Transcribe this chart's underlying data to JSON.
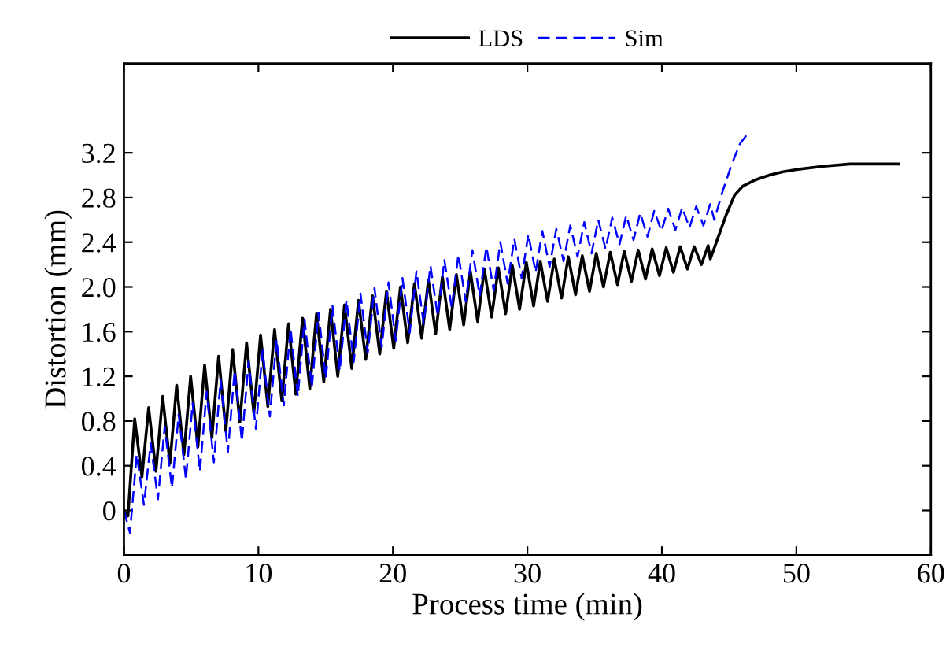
{
  "chart_data": {
    "type": "line",
    "xlabel": "Process time (min)",
    "ylabel": "Distortion (mm)",
    "xlim": [
      0,
      60
    ],
    "xticks": [
      0,
      10,
      20,
      30,
      40,
      50,
      60
    ],
    "ylim": [
      -0.4,
      4.0
    ],
    "yticks": [
      0,
      0.4,
      0.8,
      1.2,
      1.6,
      {
        "value": 2.0,
        "label": "2.0"
      },
      2.4,
      2.8,
      3.2
    ],
    "legend": "top",
    "grid": false,
    "series": [
      {
        "name": "LDS",
        "color": "#000000",
        "line_style": "solid",
        "x": [
          0,
          0.3,
          0.8,
          1.34,
          1.84,
          2.38,
          2.88,
          3.42,
          3.92,
          4.46,
          4.96,
          5.5,
          6.0,
          6.54,
          7.04,
          7.58,
          8.08,
          8.62,
          9.12,
          9.66,
          10.16,
          10.7,
          11.2,
          11.74,
          12.24,
          12.78,
          13.28,
          13.82,
          14.32,
          14.86,
          15.36,
          15.9,
          16.4,
          16.94,
          17.44,
          17.98,
          18.48,
          19.02,
          19.52,
          20.06,
          20.56,
          21.1,
          21.6,
          22.14,
          22.64,
          23.18,
          23.68,
          24.22,
          24.72,
          25.26,
          25.76,
          26.3,
          26.8,
          27.34,
          27.84,
          28.38,
          28.88,
          29.42,
          29.92,
          30.46,
          30.96,
          31.5,
          32.0,
          32.54,
          33.04,
          33.58,
          34.08,
          34.62,
          35.12,
          35.66,
          36.16,
          36.7,
          37.2,
          37.74,
          38.24,
          38.78,
          39.28,
          39.82,
          40.32,
          40.86,
          41.36,
          41.9,
          42.4,
          42.94,
          43.44,
          43.6,
          44.2,
          44.8,
          45.4,
          46,
          47,
          48,
          49,
          50,
          52,
          54,
          56,
          57.6
        ],
        "values": [
          0,
          -0.05,
          0.82,
          0.3,
          0.92,
          0.35,
          1.02,
          0.42,
          1.12,
          0.5,
          1.2,
          0.57,
          1.3,
          0.65,
          1.38,
          0.71,
          1.44,
          0.79,
          1.5,
          0.87,
          1.57,
          0.93,
          1.62,
          0.98,
          1.67,
          1.04,
          1.72,
          1.09,
          1.76,
          1.15,
          1.8,
          1.2,
          1.84,
          1.27,
          1.88,
          1.35,
          1.92,
          1.4,
          1.96,
          1.45,
          2.0,
          1.5,
          2.03,
          1.54,
          2.06,
          1.58,
          2.09,
          1.62,
          2.11,
          1.66,
          2.14,
          1.69,
          2.16,
          1.73,
          2.17,
          1.76,
          2.19,
          1.8,
          2.22,
          1.83,
          2.23,
          1.87,
          2.25,
          1.9,
          2.27,
          1.93,
          2.28,
          1.96,
          2.3,
          2.0,
          2.31,
          2.02,
          2.32,
          2.05,
          2.33,
          2.07,
          2.34,
          2.1,
          2.35,
          2.13,
          2.36,
          2.16,
          2.36,
          2.2,
          2.37,
          2.25,
          2.45,
          2.65,
          2.82,
          2.9,
          2.96,
          3.0,
          3.03,
          3.05,
          3.08,
          3.1,
          3.1,
          3.1
        ]
      },
      {
        "name": "Sim",
        "color": "#0000ff",
        "line_style": "dashed",
        "x": [
          0,
          0.45,
          0.95,
          1.49,
          1.99,
          2.53,
          3.03,
          3.57,
          4.07,
          4.61,
          5.11,
          5.65,
          6.15,
          6.69,
          7.19,
          7.73,
          8.23,
          8.77,
          9.27,
          9.81,
          10.31,
          10.85,
          11.35,
          11.89,
          12.39,
          12.93,
          13.43,
          13.97,
          14.47,
          15.01,
          15.51,
          16.05,
          16.55,
          17.09,
          17.59,
          18.13,
          18.63,
          19.17,
          19.67,
          20.21,
          20.71,
          21.25,
          21.75,
          22.29,
          22.79,
          23.33,
          23.83,
          24.37,
          24.87,
          25.41,
          25.91,
          26.45,
          26.95,
          27.49,
          27.99,
          28.53,
          29.03,
          29.57,
          30.07,
          30.61,
          31.11,
          31.65,
          32.15,
          32.69,
          33.19,
          33.73,
          34.23,
          34.77,
          35.27,
          35.81,
          36.31,
          36.85,
          37.35,
          37.89,
          38.39,
          38.93,
          39.43,
          39.97,
          40.47,
          41.01,
          41.51,
          42.05,
          42.55,
          43.09,
          43.59,
          43.9,
          44.5,
          45.2,
          45.8,
          46.5
        ],
        "values": [
          0,
          -0.2,
          0.5,
          0.05,
          0.6,
          0.1,
          0.75,
          0.2,
          0.86,
          0.28,
          0.96,
          0.35,
          1.06,
          0.43,
          1.17,
          0.52,
          1.25,
          0.62,
          1.33,
          0.73,
          1.43,
          0.84,
          1.53,
          0.94,
          1.63,
          1.02,
          1.71,
          1.1,
          1.77,
          1.18,
          1.83,
          1.25,
          1.88,
          1.33,
          1.94,
          1.41,
          1.99,
          1.46,
          2.04,
          1.52,
          2.08,
          1.59,
          2.14,
          1.67,
          2.19,
          1.74,
          2.24,
          1.81,
          2.29,
          1.87,
          2.33,
          1.92,
          2.36,
          1.97,
          2.4,
          2.03,
          2.43,
          2.08,
          2.47,
          2.13,
          2.5,
          2.18,
          2.52,
          2.23,
          2.55,
          2.27,
          2.58,
          2.3,
          2.6,
          2.34,
          2.62,
          2.38,
          2.64,
          2.42,
          2.66,
          2.45,
          2.68,
          2.5,
          2.7,
          2.51,
          2.71,
          2.53,
          2.72,
          2.55,
          2.74,
          2.6,
          2.85,
          3.1,
          3.28,
          3.39
        ]
      }
    ]
  }
}
